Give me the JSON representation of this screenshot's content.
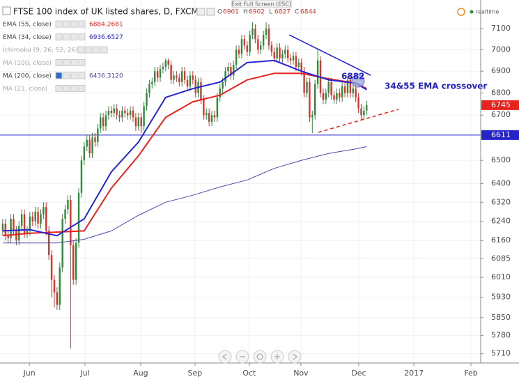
{
  "header": {
    "title": "FTSE 100 index of UK listed shares, D, FXCM",
    "ohlc": [
      {
        "key": "O",
        "value": "6901"
      },
      {
        "key": "H",
        "value": "6902"
      },
      {
        "key": "L",
        "value": "6827"
      },
      {
        "key": "C",
        "value": "6844"
      }
    ],
    "exit": "Exit Full Screen (ESC)",
    "status": "realtime"
  },
  "chart_data": {
    "type": "candlestick",
    "log_scale": true,
    "grid": true,
    "up_color": "#2e8b3a",
    "down_color": "#d9342b",
    "open": [
      6200,
      6230,
      6180,
      6170,
      6250,
      6200,
      6160,
      6220,
      6270,
      6190,
      6200,
      6260,
      6240,
      6280,
      6230,
      6270,
      6300,
      6200,
      6100,
      6000,
      5950,
      5900,
      6050,
      6250,
      6290,
      6330,
      6140,
      6000,
      6150,
      6360,
      6500,
      6560,
      6590,
      6530,
      6600,
      6580,
      6640,
      6690,
      6650,
      6700,
      6720,
      6710,
      6730,
      6700,
      6690,
      6720,
      6710,
      6700,
      6720,
      6690,
      6650,
      6690,
      6650,
      6740,
      6800,
      6840,
      6850,
      6900,
      6870,
      6910,
      6920,
      6950,
      6930,
      6860,
      6880,
      6870,
      6850,
      6900,
      6860,
      6830,
      6880,
      6860,
      6800,
      6850,
      6770,
      6700,
      6710,
      6670,
      6700,
      6690,
      6780,
      6820,
      6850,
      6900,
      6920,
      6880,
      6930,
      7000,
      6980,
      7050,
      7020,
      6990,
      7070,
      7100,
      7050,
      7000,
      7020,
      7070,
      7100,
      7020,
      6990,
      6960,
      7010,
      6960,
      6980,
      7000,
      6960,
      6950,
      6970,
      6920,
      6940,
      6900,
      6800,
      6850,
      6690,
      6700,
      6840,
      6950,
      6800,
      6770,
      6800,
      6850,
      6790,
      6770,
      6800,
      6780,
      6830,
      6800,
      6860,
      6800,
      6820,
      6780,
      6730,
      6700,
      6720
    ],
    "high": [
      6250,
      6250,
      6200,
      6270,
      6270,
      6220,
      6240,
      6290,
      6290,
      6220,
      6280,
      6280,
      6300,
      6300,
      6290,
      6320,
      6320,
      6220,
      6120,
      6020,
      5970,
      6070,
      6270,
      6310,
      6350,
      6350,
      6160,
      6170,
      6380,
      6520,
      6580,
      6610,
      6610,
      6620,
      6620,
      6660,
      6710,
      6710,
      6720,
      6740,
      6740,
      6750,
      6750,
      6720,
      6740,
      6740,
      6730,
      6740,
      6740,
      6710,
      6710,
      6710,
      6760,
      6820,
      6860,
      6870,
      6920,
      6920,
      6930,
      6940,
      6960,
      6960,
      6950,
      6900,
      6900,
      6890,
      6920,
      6920,
      6880,
      6900,
      6900,
      6880,
      6870,
      6870,
      6790,
      6730,
      6730,
      6720,
      6720,
      6800,
      6840,
      6870,
      6920,
      6940,
      6940,
      6950,
      7020,
      7020,
      7070,
      7070,
      7040,
      7090,
      7130,
      7120,
      7070,
      7040,
      7090,
      7130,
      7120,
      7040,
      7010,
      7030,
      7030,
      7000,
      7020,
      7020,
      6980,
      6990,
      6990,
      6960,
      6960,
      6920,
      6870,
      6870,
      6720,
      6860,
      7000,
      6970,
      6820,
      6820,
      6870,
      6870,
      6810,
      6820,
      6820,
      6850,
      6850,
      6880,
      6880,
      6840,
      6840,
      6800,
      6750,
      6740,
      6765
    ],
    "low": [
      6180,
      6160,
      6150,
      6150,
      6180,
      6140,
      6140,
      6200,
      6170,
      6170,
      6180,
      6220,
      6220,
      6210,
      6210,
      6250,
      6180,
      6080,
      5930,
      5890,
      5880,
      5880,
      6030,
      6230,
      6270,
      5730,
      5980,
      5980,
      6130,
      6340,
      6480,
      6540,
      6510,
      6510,
      6560,
      6560,
      6620,
      6630,
      6630,
      6680,
      6690,
      6690,
      6680,
      6670,
      6670,
      6690,
      6680,
      6680,
      6670,
      6630,
      6630,
      6620,
      6630,
      6720,
      6780,
      6820,
      6830,
      6850,
      6850,
      6890,
      6900,
      6910,
      6840,
      6840,
      6850,
      6830,
      6830,
      6840,
      6810,
      6810,
      6840,
      6780,
      6780,
      6750,
      6680,
      6680,
      6650,
      6650,
      6670,
      6670,
      6760,
      6800,
      6830,
      6880,
      6860,
      6860,
      6910,
      6960,
      6960,
      7000,
      6970,
      6970,
      7050,
      7030,
      6980,
      6980,
      7000,
      7050,
      7000,
      6970,
      6940,
      6940,
      6940,
      6940,
      6960,
      6940,
      6930,
      6930,
      6900,
      6900,
      6880,
      6780,
      6780,
      6670,
      6620,
      6680,
      6820,
      6780,
      6750,
      6750,
      6780,
      6770,
      6750,
      6750,
      6760,
      6760,
      6780,
      6780,
      6780,
      6780,
      6760,
      6710,
      6680,
      6680,
      6700
    ],
    "close": [
      6230,
      6180,
      6170,
      6250,
      6200,
      6160,
      6220,
      6270,
      6190,
      6200,
      6260,
      6240,
      6280,
      6230,
      6270,
      6300,
      6200,
      6100,
      6000,
      5950,
      5900,
      6050,
      6250,
      6290,
      6330,
      6140,
      6000,
      6150,
      6360,
      6500,
      6560,
      6590,
      6530,
      6600,
      6580,
      6640,
      6690,
      6650,
      6700,
      6720,
      6710,
      6730,
      6700,
      6690,
      6720,
      6710,
      6700,
      6720,
      6690,
      6650,
      6690,
      6650,
      6740,
      6800,
      6840,
      6850,
      6900,
      6870,
      6910,
      6920,
      6950,
      6930,
      6860,
      6880,
      6870,
      6850,
      6900,
      6860,
      6830,
      6880,
      6860,
      6800,
      6850,
      6770,
      6700,
      6710,
      6670,
      6700,
      6690,
      6780,
      6820,
      6850,
      6900,
      6920,
      6880,
      6930,
      7000,
      6980,
      7050,
      7020,
      6990,
      7070,
      7100,
      7050,
      7000,
      7020,
      7070,
      7100,
      7020,
      6990,
      6960,
      7010,
      6960,
      6980,
      7000,
      6960,
      6950,
      6970,
      6920,
      6940,
      6900,
      6800,
      6850,
      6690,
      6700,
      6840,
      6950,
      6800,
      6770,
      6800,
      6850,
      6790,
      6770,
      6800,
      6780,
      6830,
      6800,
      6860,
      6800,
      6820,
      6780,
      6730,
      6700,
      6720,
      6745
    ],
    "ylim": [
      5680,
      7170
    ],
    "yticks": [
      5710,
      5780,
      5850,
      5930,
      6010,
      6085,
      6160,
      6240,
      6320,
      6400,
      6500,
      6700,
      6800,
      6900,
      7000,
      7100
    ],
    "xlim": [
      -1,
      176
    ],
    "xticks": [
      {
        "value": 9.8,
        "label": "Jun"
      },
      {
        "value": 30.3,
        "label": "Jul"
      },
      {
        "value": 50.8,
        "label": "Aug"
      },
      {
        "value": 70.8,
        "label": "Sep"
      },
      {
        "value": 90.8,
        "label": "Oct"
      },
      {
        "value": 109.8,
        "label": "Nov"
      },
      {
        "value": 131.1,
        "label": "Dec"
      },
      {
        "value": 151.4,
        "label": "2017"
      },
      {
        "value": 172.4,
        "label": "Feb"
      }
    ],
    "series": [
      {
        "name": "EMA (55, close)",
        "value_label": "6884.2681",
        "color": "#e8231e",
        "width": 2,
        "x": [
          0,
          10,
          20,
          30,
          40,
          50,
          60,
          70,
          80,
          90,
          100,
          110,
          120,
          130,
          134
        ],
        "values": [
          6180,
          6190,
          6195,
          6200,
          6380,
          6520,
          6690,
          6760,
          6790,
          6860,
          6890,
          6890,
          6865,
          6845,
          6820
        ]
      },
      {
        "name": "EMA (34, close)",
        "value_label": "6936.6527",
        "color": "#2323d8",
        "width": 2,
        "x": [
          0,
          10,
          20,
          30,
          40,
          50,
          60,
          70,
          80,
          90,
          100,
          110,
          120,
          130,
          134
        ],
        "values": [
          6200,
          6205,
          6180,
          6250,
          6450,
          6580,
          6780,
          6820,
          6850,
          6940,
          6950,
          6900,
          6860,
          6845,
          6815
        ]
      },
      {
        "name": "MA (200, close)",
        "value_label": "6436.3120",
        "color": "#4a4aa8",
        "width": 1,
        "x": [
          0,
          10,
          20,
          30,
          40,
          50,
          60,
          70,
          80,
          90,
          100,
          110,
          120,
          130,
          134
        ],
        "values": [
          6150,
          6150,
          6150,
          6165,
          6200,
          6265,
          6320,
          6350,
          6385,
          6415,
          6465,
          6500,
          6530,
          6550,
          6560
        ]
      }
    ],
    "hidden_indicators": [
      "Ichimoku (9, 26, 52, 26)",
      "MA (100, close)",
      "MA (21, close)"
    ],
    "trendlines": [
      {
        "x": [
          105.5,
          135.5
        ],
        "y": [
          7070,
          6881
        ],
        "color": "#2323d8",
        "dashed": false
      },
      {
        "x": [
          116.2,
          145.7
        ],
        "y": [
          6623,
          6726
        ],
        "color": "#e8231e",
        "dashed": true
      }
    ],
    "price_lines": [
      {
        "value": 6745,
        "color": "#e8231e",
        "line": false
      },
      {
        "value": 6611,
        "color": "#2323c8",
        "line": true
      }
    ],
    "annotations": [
      {
        "text": "6882",
        "color": "#2323c8"
      },
      {
        "text": "34&55 EMA crossover",
        "color": "#2323c8"
      }
    ]
  }
}
